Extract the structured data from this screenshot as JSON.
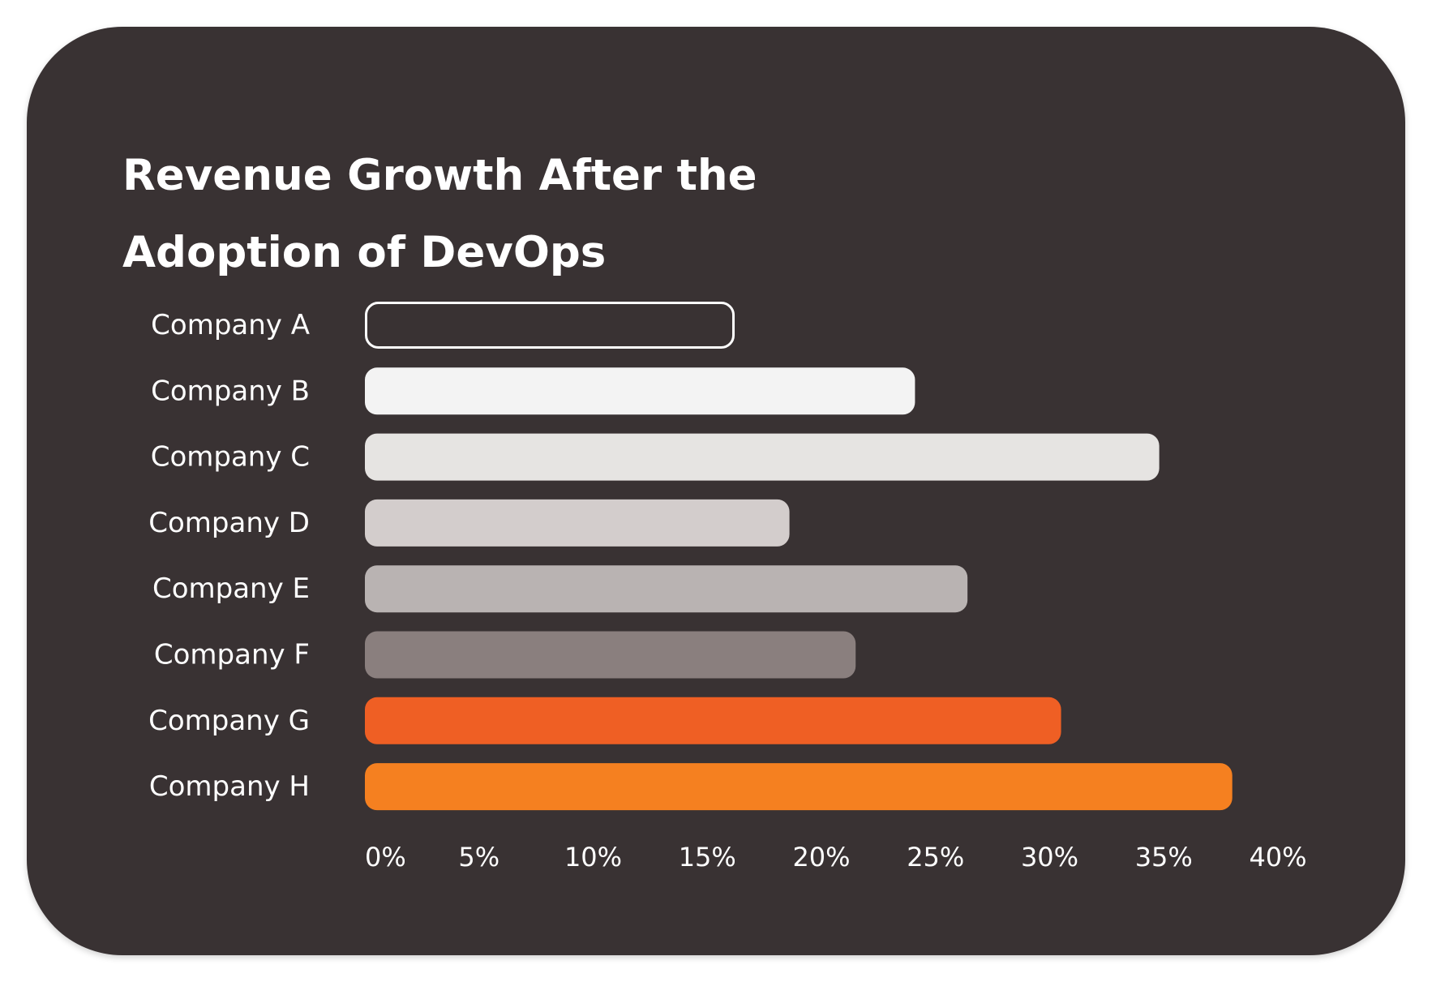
{
  "chart_data": {
    "type": "bar",
    "orientation": "horizontal",
    "title": "Revenue Growth After the Adoption of DevOps",
    "categories": [
      "Company A",
      "Company B",
      "Company C",
      "Company D",
      "Company E",
      "Company F",
      "Company G",
      "Company H"
    ],
    "values": [
      16.2,
      24.1,
      34.8,
      18.6,
      26.4,
      21.5,
      30.5,
      38.0
    ],
    "bar_colors": [
      "outline",
      "#f3f3f3",
      "#e6e4e2",
      "#d3cdcc",
      "#b9b3b2",
      "#8a7f7e",
      "#ef5f24",
      "#f58020"
    ],
    "outline_color": "#ffffff",
    "xlim": [
      0,
      40
    ],
    "x_ticks": [
      0,
      5,
      10,
      15,
      20,
      25,
      30,
      35,
      40
    ],
    "x_tick_labels": [
      "0%",
      "5%",
      "10%",
      "15%",
      "20%",
      "25%",
      "30%",
      "35%",
      "40%"
    ],
    "xlabel": "",
    "ylabel": "",
    "grid": false,
    "legend": "none"
  },
  "colors": {
    "background": "#393233",
    "text": "#ffffff"
  }
}
